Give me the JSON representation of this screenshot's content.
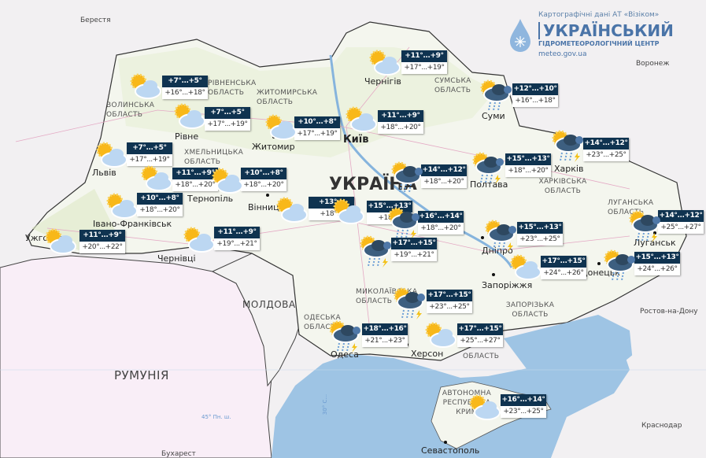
{
  "logo": {
    "source": "Картографічні дані АТ «Візіком»",
    "title": "УКРАЇНСЬКИЙ",
    "subtitle": "ГІДРОМЕТЕОРОЛОГІЧНИЙ ЦЕНТР",
    "url": "meteo.gov.ua"
  },
  "colors": {
    "label_header": "#0f3350",
    "sea": "#9ec4e4",
    "ukraine": "#f4f6ee",
    "romania": "#f9eef7"
  },
  "countries": {
    "ukraine": "УКРАЇНА",
    "moldova": "МОЛДОВА",
    "romania": "РУМУНІЯ"
  },
  "foreign_cities": {
    "berestia": "Берестя",
    "voronezh": "Воронеж",
    "rostov": "Ростов-на-Дону",
    "krasnodar": "Краснодар",
    "bucharest": "Бухарест",
    "sevastopol": "Севастополь"
  },
  "cities": {
    "kyiv": "Київ",
    "chernihiv": "Чернігів",
    "zhytomyr": "Житомир",
    "rivne": "Рівне",
    "lviv": "Львів",
    "ternopil": "Тернопіль",
    "vinnytsia": "Вінниця",
    "ivano_frankivsk": "Івано-Франківськ",
    "uzhhorod": "Ужгород",
    "chernivtsi": "Чернівці",
    "sumy": "Суми",
    "poltava": "Полтава",
    "kharkiv": "Харків",
    "dnipro": "Дніпро",
    "zaporizhzhia": "Запоріжжя",
    "donetsk": "Донецьк",
    "luhansk": "Луганськ",
    "odesa": "Одеса",
    "kherson": "Херсон"
  },
  "regions": {
    "volyn": "ВОЛИНСЬКА ОБЛАСТЬ",
    "rivne": "РІВНЕНСЬКА ОБЛАСТЬ",
    "zhytomyr": "ЖИТОМИРСЬКА ОБЛАСТЬ",
    "khmelnytskyi": "ХМЕЛЬНИЦЬКА ОБЛАСТЬ",
    "sumy": "СУМСЬКА ОБЛАСТЬ",
    "kharkiv": "ХАРКІВСЬКА ОБЛАСТЬ",
    "luhansk": "ЛУГАНСЬКА ОБЛАСТЬ",
    "mykolaiv": "МИКОЛАЇВСЬКА ОБЛАСТЬ",
    "odesa": "ОДЕСЬКА ОБЛАСТЬ",
    "zaporizhzhia": "ЗАПОРІЗЬКА ОБЛАСТЬ",
    "kherson": "ОБЛАСТЬ",
    "crimea": "АВТОНОМНА РЕСПУБЛІКА КРИМ"
  },
  "grid": {
    "parallel": "45° Пн. ш.",
    "meridian": "30° С..."
  },
  "forecasts": [
    {
      "night": "+7°...+5°",
      "day": "+16°...+18°",
      "icon": "partly-cloudy"
    },
    {
      "night": "+7°...+5°",
      "day": "+17°...+19°",
      "icon": "partly-cloudy"
    },
    {
      "night": "+10°...+8°",
      "day": "+17°...+19°",
      "icon": "partly-cloudy"
    },
    {
      "night": "+11°...+9°",
      "day": "+18°...+20°",
      "icon": "partly-cloudy"
    },
    {
      "night": "+11°...+9°",
      "day": "+17°...+19°",
      "icon": "partly-cloudy"
    },
    {
      "night": "+12°...+10°",
      "day": "+16°...+18°",
      "icon": "rain"
    },
    {
      "night": "+14°...+12°",
      "day": "+23°...+25°",
      "icon": "thunderstorm"
    },
    {
      "night": "+15°...+13°",
      "day": "+18°...+20°",
      "icon": "thunderstorm"
    },
    {
      "night": "+14°...+12°",
      "day": "+18°...+20°",
      "icon": "rain"
    },
    {
      "night": "+7°...+5°",
      "day": "+17°...+19°",
      "icon": "partly-cloudy"
    },
    {
      "night": "+11°...+9°",
      "day": "+18°...+20°",
      "icon": "partly-cloudy"
    },
    {
      "night": "+10°...+8°",
      "day": "+18°...+20°",
      "icon": "partly-cloudy"
    },
    {
      "night": "+10°...+8°",
      "day": "+18°...+20°",
      "icon": "partly-cloudy"
    },
    {
      "night": "+11°...+9°",
      "day": "+20°...+22°",
      "icon": "partly-cloudy"
    },
    {
      "night": "+11°...+9°",
      "day": "+19°...+21°",
      "icon": "partly-cloudy"
    },
    {
      "night": "+13°...",
      "day": "+18°...",
      "icon": "partly-cloudy"
    },
    {
      "night": "+15°...+13°",
      "day": "+18°...",
      "icon": "partly-cloudy"
    },
    {
      "night": "+16°...+14°",
      "day": "+18°...+20°",
      "icon": "thunderstorm"
    },
    {
      "night": "+17°...+15°",
      "day": "+19°...+21°",
      "icon": "thunderstorm"
    },
    {
      "night": "+15°...+13°",
      "day": "+23°...+25°",
      "icon": "thunderstorm"
    },
    {
      "night": "+14°...+12°",
      "day": "+25°...+27°",
      "icon": "thunderstorm"
    },
    {
      "night": "+17°...+15°",
      "day": "+24°...+26°",
      "icon": "partly-cloudy"
    },
    {
      "night": "+15°...+13°",
      "day": "+24°...+26°",
      "icon": "rain"
    },
    {
      "night": "+17°...+15°",
      "day": "+23°...+25°",
      "icon": "thunderstorm"
    },
    {
      "night": "+18°...+16°",
      "day": "+21°...+23°",
      "icon": "thunderstorm"
    },
    {
      "night": "+17°...+15°",
      "day": "+25°...+27°",
      "icon": "partly-cloudy"
    },
    {
      "night": "+16°...+14°",
      "day": "+23°...+25°",
      "icon": "partly-cloudy"
    }
  ]
}
